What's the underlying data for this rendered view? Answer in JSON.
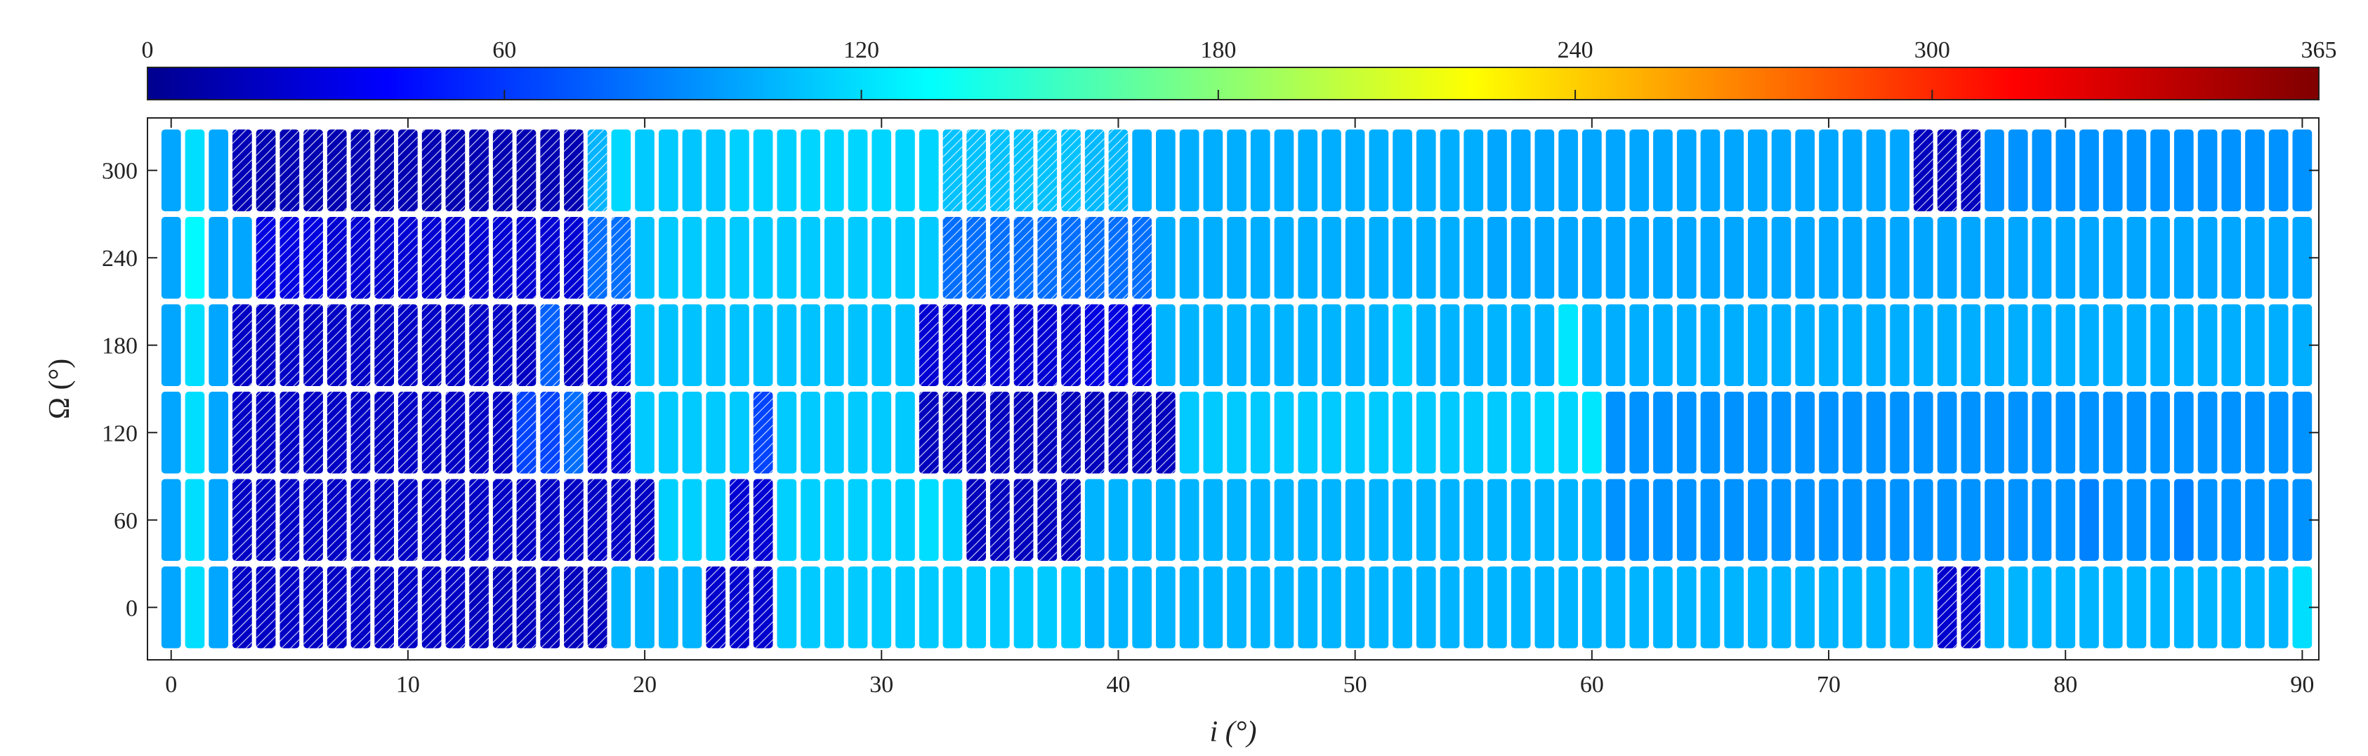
{
  "chart_data": {
    "type": "heatmap",
    "title": "",
    "xlabel": "i (°)",
    "ylabel": "Ω (°)",
    "x_ticks": [
      0,
      10,
      20,
      30,
      40,
      50,
      60,
      70,
      80,
      90
    ],
    "y_ticks": [
      0,
      60,
      120,
      180,
      240,
      300
    ],
    "xlim": [
      -1,
      90.7
    ],
    "ylim": [
      -36,
      336
    ],
    "colorbar": {
      "colormap": "jet",
      "min": 0,
      "max": 365,
      "ticks": [
        0,
        60,
        120,
        180,
        240,
        300,
        365
      ],
      "location": "top"
    },
    "x": [
      0,
      1,
      2,
      3,
      4,
      5,
      6,
      7,
      8,
      9,
      10,
      11,
      12,
      13,
      14,
      15,
      16,
      17,
      18,
      19,
      20,
      21,
      22,
      23,
      24,
      25,
      26,
      27,
      28,
      29,
      30,
      31,
      32,
      33,
      34,
      35,
      36,
      37,
      38,
      39,
      40,
      41,
      42,
      43,
      44,
      45,
      46,
      47,
      48,
      49,
      50,
      51,
      52,
      53,
      54,
      55,
      56,
      57,
      58,
      59,
      60,
      61,
      62,
      63,
      64,
      65,
      66,
      67,
      68,
      69,
      70,
      71,
      72,
      73,
      74,
      75,
      76,
      77,
      78,
      79,
      80,
      81,
      82,
      83,
      84,
      85,
      86,
      87,
      88,
      89,
      90
    ],
    "y": [
      0,
      60,
      120,
      180,
      240,
      300
    ],
    "series": [
      {
        "omega": 300,
        "values": [
          105,
          125,
          105,
          20,
          18,
          18,
          18,
          18,
          18,
          18,
          18,
          18,
          18,
          18,
          18,
          18,
          18,
          18,
          110,
          123,
          118,
          118,
          116,
          116,
          120,
          120,
          120,
          122,
          122,
          122,
          122,
          122,
          122,
          115,
          115,
          115,
          115,
          115,
          115,
          112,
          112,
          108,
          108,
          108,
          108,
          108,
          108,
          108,
          108,
          108,
          108,
          108,
          108,
          108,
          108,
          108,
          105,
          105,
          105,
          105,
          105,
          105,
          105,
          105,
          105,
          105,
          105,
          105,
          105,
          105,
          105,
          105,
          105,
          105,
          22,
          22,
          22,
          98,
          98,
          98,
          98,
          98,
          98,
          98,
          98,
          98,
          98,
          98,
          98,
          98,
          98
        ],
        "hatched": [
          0,
          0,
          0,
          1,
          1,
          1,
          1,
          1,
          1,
          1,
          1,
          1,
          1,
          1,
          1,
          1,
          1,
          1,
          1,
          0,
          0,
          0,
          0,
          0,
          0,
          0,
          0,
          0,
          0,
          0,
          0,
          0,
          0,
          1,
          1,
          1,
          1,
          1,
          1,
          1,
          1,
          0,
          0,
          0,
          0,
          0,
          0,
          0,
          0,
          0,
          0,
          0,
          0,
          0,
          0,
          0,
          0,
          0,
          0,
          0,
          0,
          0,
          0,
          0,
          0,
          0,
          0,
          0,
          0,
          0,
          0,
          0,
          0,
          0,
          1,
          1,
          1,
          0,
          0,
          0,
          0,
          0,
          0,
          0,
          0,
          0,
          0,
          0,
          0,
          0,
          0
        ]
      },
      {
        "omega": 240,
        "values": [
          105,
          135,
          105,
          105,
          35,
          35,
          35,
          30,
          30,
          30,
          30,
          30,
          30,
          30,
          30,
          30,
          30,
          30,
          85,
          85,
          115,
          118,
          118,
          118,
          118,
          118,
          118,
          118,
          118,
          118,
          118,
          118,
          118,
          85,
          85,
          85,
          85,
          85,
          85,
          85,
          85,
          85,
          108,
          108,
          108,
          108,
          108,
          108,
          108,
          108,
          108,
          108,
          108,
          108,
          108,
          108,
          105,
          105,
          105,
          105,
          105,
          105,
          105,
          105,
          105,
          105,
          105,
          105,
          105,
          105,
          105,
          105,
          105,
          105,
          105,
          105,
          105,
          105,
          105,
          105,
          105,
          105,
          105,
          105,
          105,
          105,
          105,
          105,
          105,
          105,
          105
        ],
        "hatched": [
          0,
          0,
          0,
          0,
          1,
          1,
          1,
          1,
          1,
          1,
          1,
          1,
          1,
          1,
          1,
          1,
          1,
          1,
          1,
          1,
          0,
          0,
          0,
          0,
          0,
          0,
          0,
          0,
          0,
          0,
          0,
          0,
          0,
          1,
          1,
          1,
          1,
          1,
          1,
          1,
          1,
          1,
          0,
          0,
          0,
          0,
          0,
          0,
          0,
          0,
          0,
          0,
          0,
          0,
          0,
          0,
          0,
          0,
          0,
          0,
          0,
          0,
          0,
          0,
          0,
          0,
          0,
          0,
          0,
          0,
          0,
          0,
          0,
          0,
          0,
          0,
          0,
          0,
          0,
          0,
          0,
          0,
          0,
          0,
          0,
          0,
          0,
          0,
          0,
          0,
          0
        ]
      },
      {
        "omega": 180,
        "values": [
          105,
          125,
          105,
          25,
          25,
          25,
          25,
          25,
          25,
          25,
          25,
          25,
          25,
          25,
          25,
          25,
          80,
          25,
          30,
          30,
          115,
          115,
          115,
          115,
          115,
          115,
          115,
          115,
          115,
          115,
          115,
          115,
          30,
          30,
          30,
          30,
          30,
          30,
          30,
          35,
          35,
          35,
          110,
          110,
          110,
          110,
          110,
          110,
          110,
          110,
          110,
          110,
          118,
          110,
          110,
          110,
          110,
          110,
          110,
          128,
          110,
          108,
          108,
          108,
          108,
          108,
          108,
          108,
          108,
          108,
          108,
          108,
          108,
          108,
          108,
          108,
          108,
          108,
          108,
          108,
          108,
          108,
          108,
          108,
          108,
          108,
          108,
          108,
          108,
          108,
          108
        ],
        "hatched": [
          0,
          0,
          0,
          1,
          1,
          1,
          1,
          1,
          1,
          1,
          1,
          1,
          1,
          1,
          1,
          1,
          1,
          1,
          1,
          1,
          0,
          0,
          0,
          0,
          0,
          0,
          0,
          0,
          0,
          0,
          0,
          0,
          1,
          1,
          1,
          1,
          1,
          1,
          1,
          1,
          1,
          1,
          0,
          0,
          0,
          0,
          0,
          0,
          0,
          0,
          0,
          0,
          0,
          0,
          0,
          0,
          0,
          0,
          0,
          0,
          0,
          0,
          0,
          0,
          0,
          0,
          0,
          0,
          0,
          0,
          0,
          0,
          0,
          0,
          0,
          0,
          0,
          0,
          0,
          0,
          0,
          0,
          0,
          0,
          0,
          0,
          0,
          0,
          0,
          0,
          0
        ]
      },
      {
        "omega": 120,
        "values": [
          105,
          125,
          105,
          25,
          25,
          25,
          25,
          25,
          25,
          25,
          25,
          25,
          25,
          25,
          25,
          70,
          70,
          85,
          30,
          30,
          118,
          118,
          118,
          118,
          118,
          70,
          118,
          118,
          118,
          118,
          118,
          118,
          22,
          22,
          22,
          22,
          22,
          22,
          22,
          22,
          22,
          22,
          22,
          118,
          118,
          118,
          118,
          118,
          118,
          118,
          118,
          118,
          118,
          118,
          118,
          118,
          118,
          118,
          122,
          122,
          128,
          98,
          98,
          98,
          98,
          98,
          98,
          98,
          98,
          98,
          98,
          98,
          98,
          98,
          98,
          98,
          98,
          98,
          98,
          98,
          98,
          98,
          98,
          98,
          98,
          98,
          98,
          98,
          98,
          98,
          98
        ],
        "hatched": [
          0,
          0,
          0,
          1,
          1,
          1,
          1,
          1,
          1,
          1,
          1,
          1,
          1,
          1,
          1,
          1,
          1,
          1,
          1,
          1,
          0,
          0,
          0,
          0,
          0,
          1,
          0,
          0,
          0,
          0,
          0,
          0,
          1,
          1,
          1,
          1,
          1,
          1,
          1,
          1,
          1,
          1,
          1,
          0,
          0,
          0,
          0,
          0,
          0,
          0,
          0,
          0,
          0,
          0,
          0,
          0,
          0,
          0,
          0,
          0,
          0,
          0,
          0,
          0,
          0,
          0,
          0,
          0,
          0,
          0,
          0,
          0,
          0,
          0,
          0,
          0,
          0,
          0,
          0,
          0,
          0,
          0,
          0,
          0,
          0,
          0,
          0,
          0,
          0,
          0,
          0
        ]
      },
      {
        "omega": 60,
        "values": [
          105,
          125,
          105,
          25,
          25,
          25,
          25,
          25,
          25,
          25,
          25,
          25,
          25,
          25,
          25,
          25,
          25,
          25,
          25,
          25,
          25,
          120,
          120,
          120,
          30,
          30,
          120,
          120,
          120,
          120,
          120,
          120,
          125,
          120,
          22,
          22,
          22,
          22,
          22,
          110,
          110,
          110,
          110,
          110,
          110,
          110,
          110,
          110,
          110,
          110,
          110,
          110,
          110,
          110,
          110,
          110,
          110,
          110,
          110,
          110,
          110,
          98,
          98,
          98,
          98,
          98,
          98,
          98,
          98,
          98,
          98,
          98,
          98,
          98,
          98,
          98,
          98,
          98,
          98,
          98,
          98,
          92,
          98,
          98,
          98,
          92,
          98,
          98,
          98,
          98,
          98
        ],
        "hatched": [
          0,
          0,
          0,
          1,
          1,
          1,
          1,
          1,
          1,
          1,
          1,
          1,
          1,
          1,
          1,
          1,
          1,
          1,
          1,
          1,
          1,
          0,
          0,
          0,
          1,
          1,
          0,
          0,
          0,
          0,
          0,
          0,
          0,
          0,
          1,
          1,
          1,
          1,
          1,
          0,
          0,
          0,
          0,
          0,
          0,
          0,
          0,
          0,
          0,
          0,
          0,
          0,
          0,
          0,
          0,
          0,
          0,
          0,
          0,
          0,
          0,
          0,
          0,
          0,
          0,
          0,
          0,
          0,
          0,
          0,
          0,
          0,
          0,
          0,
          0,
          0,
          0,
          0,
          0,
          0,
          0,
          0,
          0,
          0,
          0,
          0,
          0,
          0,
          0,
          0,
          0
        ]
      },
      {
        "omega": 0,
        "values": [
          105,
          125,
          105,
          25,
          25,
          25,
          25,
          25,
          25,
          25,
          25,
          25,
          25,
          22,
          22,
          22,
          22,
          22,
          22,
          110,
          110,
          110,
          110,
          28,
          28,
          28,
          118,
          118,
          118,
          118,
          118,
          118,
          118,
          118,
          118,
          118,
          118,
          118,
          118,
          110,
          110,
          110,
          110,
          110,
          110,
          110,
          110,
          110,
          110,
          110,
          110,
          110,
          110,
          110,
          110,
          110,
          110,
          110,
          110,
          110,
          110,
          110,
          110,
          110,
          110,
          110,
          110,
          110,
          110,
          110,
          110,
          110,
          110,
          110,
          110,
          28,
          28,
          110,
          110,
          110,
          110,
          110,
          110,
          110,
          110,
          110,
          110,
          110,
          110,
          110,
          125
        ],
        "hatched": [
          0,
          0,
          0,
          1,
          1,
          1,
          1,
          1,
          1,
          1,
          1,
          1,
          1,
          1,
          1,
          1,
          1,
          1,
          1,
          0,
          0,
          0,
          0,
          1,
          1,
          1,
          0,
          0,
          0,
          0,
          0,
          0,
          0,
          0,
          0,
          0,
          0,
          0,
          0,
          0,
          0,
          0,
          0,
          0,
          0,
          0,
          0,
          0,
          0,
          0,
          0,
          0,
          0,
          0,
          0,
          0,
          0,
          0,
          0,
          0,
          0,
          0,
          0,
          0,
          0,
          0,
          0,
          0,
          0,
          0,
          0,
          0,
          0,
          0,
          0,
          1,
          1,
          0,
          0,
          0,
          0,
          0,
          0,
          0,
          0,
          0,
          0,
          0,
          0,
          0,
          0
        ]
      }
    ]
  }
}
